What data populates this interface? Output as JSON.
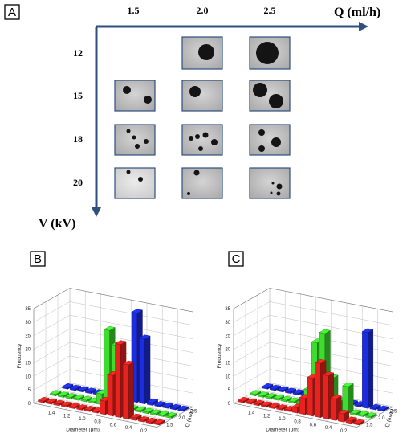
{
  "panel_a": {
    "letter": "A",
    "x_axis_label": "Q (ml/h)",
    "y_axis_label": "V (kV)",
    "q_values": [
      "1.5",
      "2.0",
      "2.5"
    ],
    "v_values": [
      "12",
      "15",
      "18",
      "20"
    ],
    "micrograph_cells": [
      {
        "row": 0,
        "col": 1
      },
      {
        "row": 0,
        "col": 2
      },
      {
        "row": 1,
        "col": 0
      },
      {
        "row": 1,
        "col": 1
      },
      {
        "row": 1,
        "col": 2
      },
      {
        "row": 2,
        "col": 0
      },
      {
        "row": 2,
        "col": 1
      },
      {
        "row": 2,
        "col": 2
      },
      {
        "row": 3,
        "col": 0
      },
      {
        "row": 3,
        "col": 1
      },
      {
        "row": 3,
        "col": 2
      }
    ]
  },
  "chart_data": [
    {
      "type": "bar",
      "panel": "B",
      "zlabel": "Frequency",
      "xlabel": "Diameter (μm)",
      "ylabel": "Q (ml/h)",
      "x_ticks": [
        "1.4",
        "1.2",
        "1.0",
        "0.8",
        "0.6",
        "0.4",
        "0.2"
      ],
      "y_ticks": [
        "1.5",
        "2.0",
        "2.5"
      ],
      "z_ticks": [
        "0",
        "5",
        "10",
        "15",
        "20",
        "25",
        "30",
        "35"
      ],
      "zlim": [
        0,
        35
      ],
      "categories": [
        1.6,
        1.5,
        1.4,
        1.3,
        1.2,
        1.1,
        1.0,
        0.9,
        0.8,
        0.7,
        0.6,
        0.5,
        0.4,
        0.3,
        0.2,
        0.1
      ],
      "series": [
        {
          "q": "1.5",
          "color": "#e8221e",
          "values": [
            0,
            0,
            0,
            0,
            0,
            0,
            0,
            0,
            5,
            15,
            27,
            20,
            1,
            0,
            0,
            0
          ]
        },
        {
          "q": "2.0",
          "color": "#3ddc2e",
          "values": [
            0,
            0,
            0,
            0,
            0,
            0,
            4,
            28,
            23,
            6,
            0,
            0,
            0,
            0,
            0,
            0
          ]
        },
        {
          "q": "2.5",
          "color": "#1c2ce0",
          "values": [
            0,
            0,
            0,
            0,
            0,
            0,
            0,
            0,
            0,
            33,
            24,
            1,
            0,
            0,
            0,
            0
          ]
        }
      ]
    },
    {
      "type": "bar",
      "panel": "C",
      "zlabel": "Frequency",
      "xlabel": "Diameter (μm)",
      "ylabel": "Q (ml/h)",
      "x_ticks": [
        "1.4",
        "1.2",
        "1.0",
        "0.8",
        "0.6",
        "0.4",
        "0.2"
      ],
      "y_ticks": [
        "1.5",
        "2.0",
        "2.5"
      ],
      "z_ticks": [
        "0",
        "5",
        "10",
        "15",
        "20",
        "25",
        "30",
        "35"
      ],
      "zlim": [
        0,
        35
      ],
      "categories": [
        1.6,
        1.5,
        1.4,
        1.3,
        1.2,
        1.1,
        1.0,
        0.9,
        0.8,
        0.7,
        0.6,
        0.5,
        0.4,
        0.3,
        0.2,
        0.1
      ],
      "series": [
        {
          "q": "1.5",
          "color": "#e8221e",
          "values": [
            0,
            0,
            0,
            0,
            0,
            0,
            0,
            2,
            6,
            14,
            20,
            16,
            8,
            3,
            1,
            0
          ]
        },
        {
          "q": "2.0",
          "color": "#3ddc2e",
          "values": [
            0,
            0,
            0,
            0,
            0,
            0,
            0,
            6,
            24,
            28,
            12,
            4,
            10,
            0,
            0,
            0
          ]
        },
        {
          "q": "2.5",
          "color": "#1c2ce0",
          "values": [
            0,
            0,
            0,
            0,
            0,
            0,
            0,
            0,
            0,
            0,
            0,
            0,
            0,
            28,
            0,
            0
          ]
        }
      ]
    }
  ]
}
